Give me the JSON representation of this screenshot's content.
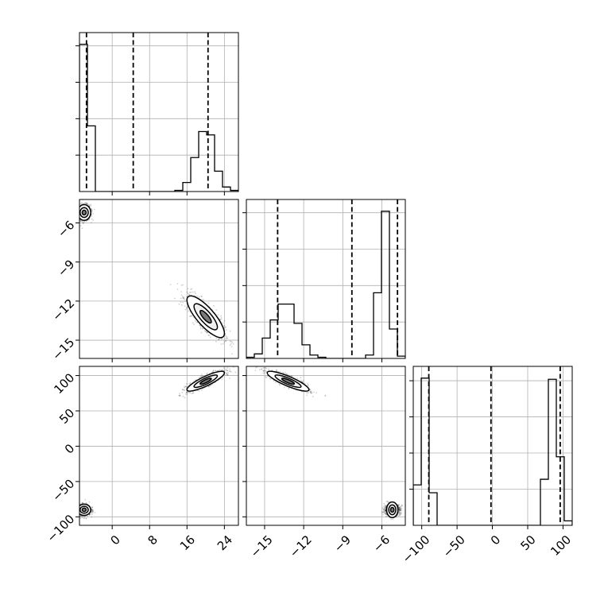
{
  "chart_data": {
    "type": "corner",
    "title": "",
    "grid": true,
    "parameters": [
      {
        "range": [
          -7,
          27
        ],
        "ticks": [
          0,
          8,
          16,
          24
        ],
        "tick_labels": [
          "0",
          "8",
          "16",
          "24"
        ]
      },
      {
        "range": [
          -16.4,
          -4.2
        ],
        "ticks": [
          -15,
          -12,
          -9,
          -6
        ],
        "tick_labels": [
          "−15",
          "−12",
          "−9",
          "−6"
        ]
      },
      {
        "range": [
          -112,
          113
        ],
        "ticks": [
          -100,
          -50,
          0,
          50,
          100
        ],
        "tick_labels": [
          "−100",
          "−50",
          "0",
          "50",
          "100"
        ]
      }
    ],
    "quantile_lines": [
      [
        -5.5,
        4.5,
        20.5
      ],
      [
        -14.0,
        -8.3,
        -4.8
      ],
      [
        -90.0,
        -2.0,
        96.0
      ]
    ],
    "histograms": [
      {
        "edges": [
          -7,
          -5.3,
          -3.6,
          -1.9,
          -0.2,
          1.5,
          3.2,
          4.9,
          6.6,
          8.3,
          10.0,
          11.7,
          13.4,
          15.1,
          16.8,
          18.5,
          20.2,
          21.9,
          23.6,
          25.3,
          27.0
        ],
        "counts": [
          1.3,
          0.58,
          0,
          0,
          0,
          0,
          0,
          0,
          0,
          0,
          0,
          0,
          0.01,
          0.08,
          0.3,
          0.53,
          0.5,
          0.18,
          0.04,
          0.01
        ]
      },
      {
        "edges": [
          -16.4,
          -15.79,
          -15.18,
          -14.57,
          -13.96,
          -13.35,
          -12.74,
          -12.13,
          -11.52,
          -10.91,
          -10.3,
          -9.69,
          -9.08,
          -8.47,
          -7.86,
          -7.25,
          -6.64,
          -6.03,
          -5.42,
          -4.81,
          -4.2
        ],
        "counts": [
          0.01,
          0.04,
          0.18,
          0.34,
          0.48,
          0.48,
          0.31,
          0.12,
          0.03,
          0.01,
          0,
          0,
          0,
          0,
          0,
          0.03,
          0.58,
          1.3,
          0.26,
          0.02
        ]
      },
      {
        "edges": [
          -112,
          -100.75,
          -89.5,
          -78.25,
          -67.0,
          -55.75,
          -44.5,
          -33.25,
          -22.0,
          -10.75,
          0.5,
          11.75,
          23.0,
          34.25,
          45.5,
          56.75,
          68.0,
          79.25,
          90.5,
          101.75,
          113.0
        ],
        "counts": [
          0.36,
          1.31,
          0.29,
          0,
          0,
          0,
          0,
          0,
          0,
          0,
          0,
          0,
          0,
          0,
          0,
          0,
          0.41,
          1.3,
          0.61,
          0.04
        ]
      }
    ],
    "clusters": [
      {
        "p1": -6.0,
        "s1": 0.7,
        "p2": -5.2,
        "s2": 0.3,
        "p3": -90.0,
        "s3": 4.0,
        "w": 0.5,
        "c12": 0.0,
        "c13": 0.0,
        "c23": 0.0
      },
      {
        "p1": 20.0,
        "s1": 2.0,
        "p2": -13.2,
        "s2": 0.8,
        "p3": 92.0,
        "s3": 7.0,
        "w": 0.5,
        "c12": -0.8,
        "c13": 0.85,
        "c23": -0.85
      }
    ]
  }
}
